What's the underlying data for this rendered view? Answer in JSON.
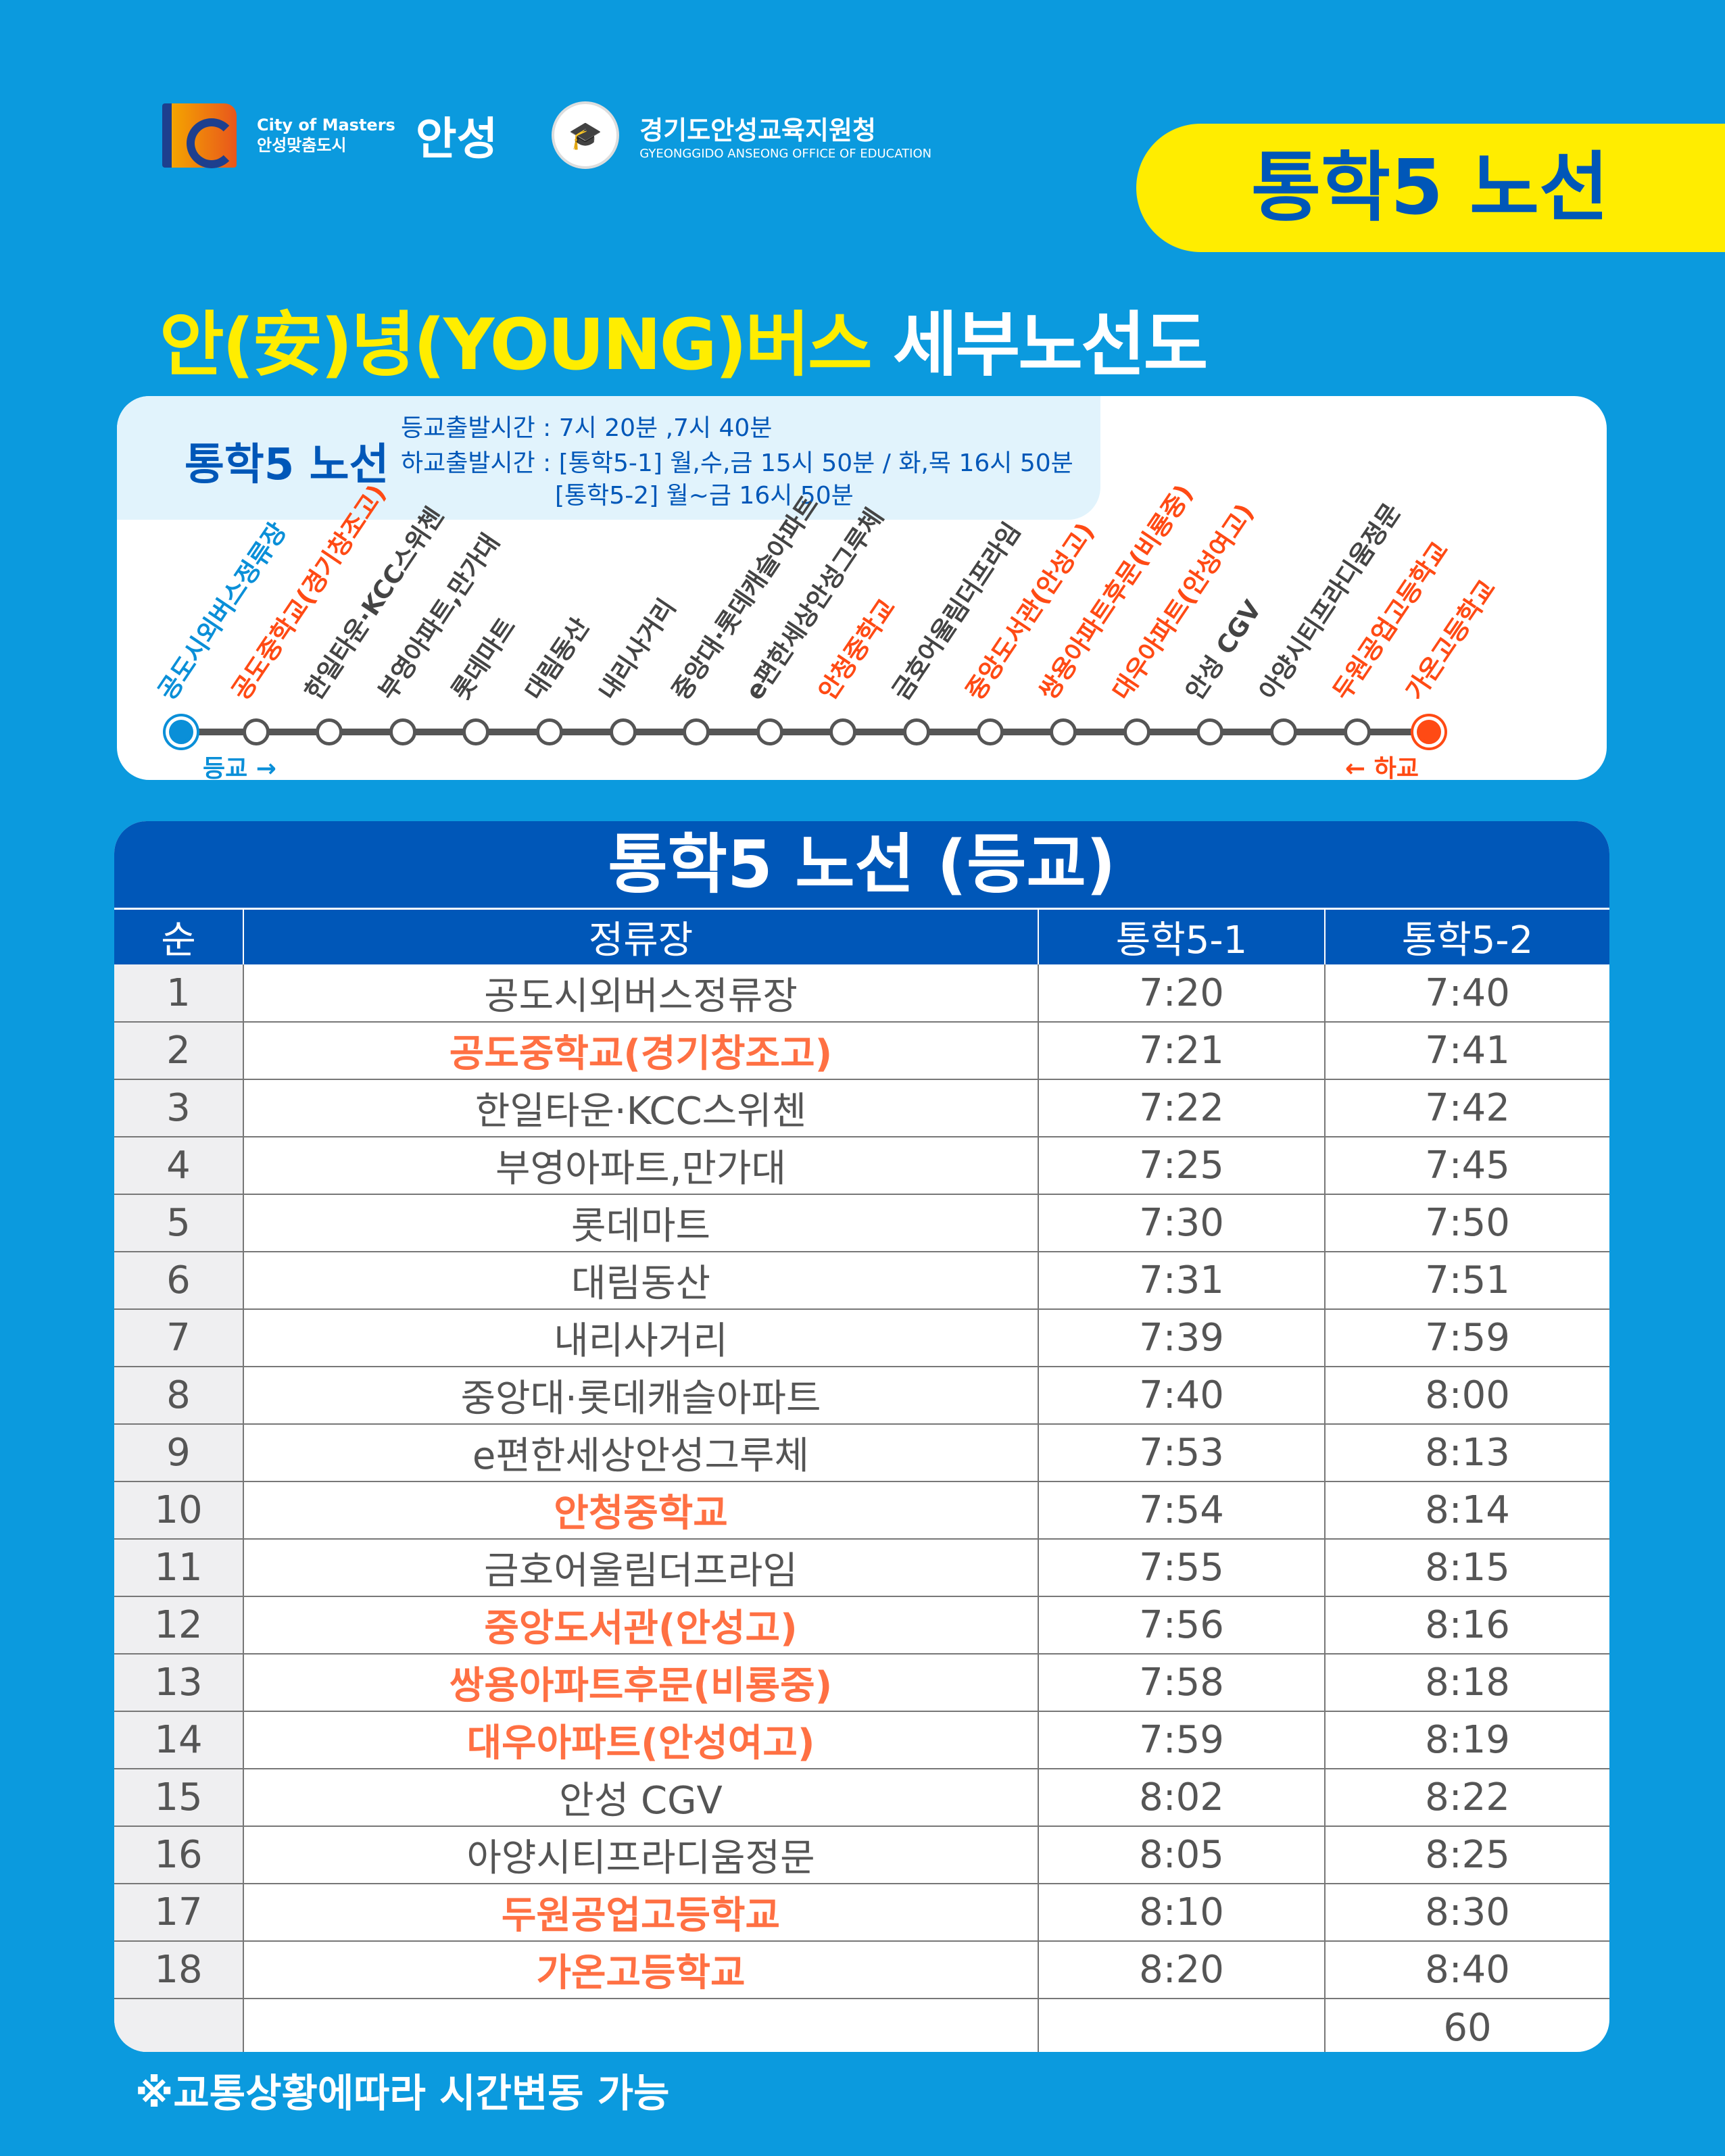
{
  "header": {
    "city_slogan_en": "City of Masters",
    "city_slogan_ko": "안성맞춤도시",
    "city_name": "안성",
    "office_name": "경기도안성교육지원청",
    "office_name_en": "GYEONGGIDO ANSEONG OFFICE OF EDUCATION",
    "route_badge": "통학5 노선"
  },
  "title": {
    "yellow": "안(安)녕(YOUNG)버스",
    "white": " 세부노선도"
  },
  "info": {
    "route": "통학5 노선",
    "line1": "등교출발시간 : 7시 20분 ,7시 40분",
    "line2": "하교출발시간 : [통학5-1] 월,수,금 15시 50분 / 화,목 16시 50분",
    "line3": "[통학5-2] 월~금 16시 50분"
  },
  "map": {
    "start_label": "등교 →",
    "end_label": "← 하교",
    "colors": {
      "start": "#0a8fd8",
      "school": "#ff4a14",
      "normal": "#444444"
    },
    "stations": [
      {
        "name": "공도시외버스정류장",
        "type": "start"
      },
      {
        "name": "공도중학교(경기창조고)",
        "type": "school"
      },
      {
        "name": "한일타운·KCC스위첸",
        "type": "normal"
      },
      {
        "name": "부영아파트,만가대",
        "type": "normal"
      },
      {
        "name": "롯데마트",
        "type": "normal"
      },
      {
        "name": "대림동산",
        "type": "normal"
      },
      {
        "name": "내리사거리",
        "type": "normal"
      },
      {
        "name": "중앙대·롯데캐슬아파트",
        "type": "normal"
      },
      {
        "name": "e편한세상안성그루체",
        "type": "normal"
      },
      {
        "name": "안청중학교",
        "type": "school"
      },
      {
        "name": "금호어울림더프라임",
        "type": "normal"
      },
      {
        "name": "중앙도서관(안성고)",
        "type": "school"
      },
      {
        "name": "쌍용아파트후문(비룡중)",
        "type": "school"
      },
      {
        "name": "대우아파트(안성여고)",
        "type": "school"
      },
      {
        "name": "안성 CGV",
        "type": "normal"
      },
      {
        "name": "아양시티프라디움정문",
        "type": "normal"
      },
      {
        "name": "두원공업고등학교",
        "type": "school"
      },
      {
        "name": "가온고등학교",
        "type": "school"
      }
    ]
  },
  "table": {
    "title": "통학5 노선 (등교)",
    "headers": [
      "순",
      "정류장",
      "통학5-1",
      "통학5-2"
    ],
    "rows": [
      [
        "1",
        "공도시외버스정류장",
        "7:20",
        "7:40",
        false
      ],
      [
        "2",
        "공도중학교(경기창조고)",
        "7:21",
        "7:41",
        true
      ],
      [
        "3",
        "한일타운·KCC스위첸",
        "7:22",
        "7:42",
        false
      ],
      [
        "4",
        "부영아파트,만가대",
        "7:25",
        "7:45",
        false
      ],
      [
        "5",
        "롯데마트",
        "7:30",
        "7:50",
        false
      ],
      [
        "6",
        "대림동산",
        "7:31",
        "7:51",
        false
      ],
      [
        "7",
        "내리사거리",
        "7:39",
        "7:59",
        false
      ],
      [
        "8",
        "중앙대·롯데캐슬아파트",
        "7:40",
        "8:00",
        false
      ],
      [
        "9",
        "e편한세상안성그루체",
        "7:53",
        "8:13",
        false
      ],
      [
        "10",
        "안청중학교",
        "7:54",
        "8:14",
        true
      ],
      [
        "11",
        "금호어울림더프라임",
        "7:55",
        "8:15",
        false
      ],
      [
        "12",
        "중앙도서관(안성고)",
        "7:56",
        "8:16",
        true
      ],
      [
        "13",
        "쌍용아파트후문(비룡중)",
        "7:58",
        "8:18",
        true
      ],
      [
        "14",
        "대우아파트(안성여고)",
        "7:59",
        "8:19",
        true
      ],
      [
        "15",
        "안성 CGV",
        "8:02",
        "8:22",
        false
      ],
      [
        "16",
        "아양시티프라디움정문",
        "8:05",
        "8:25",
        false
      ],
      [
        "17",
        "두원공업고등학교",
        "8:10",
        "8:30",
        true
      ],
      [
        "18",
        "가온고등학교",
        "8:20",
        "8:40",
        true
      ],
      [
        "",
        "",
        "",
        "60",
        false
      ]
    ]
  },
  "footnote": "※교통상황에따라 시간변동 가능"
}
